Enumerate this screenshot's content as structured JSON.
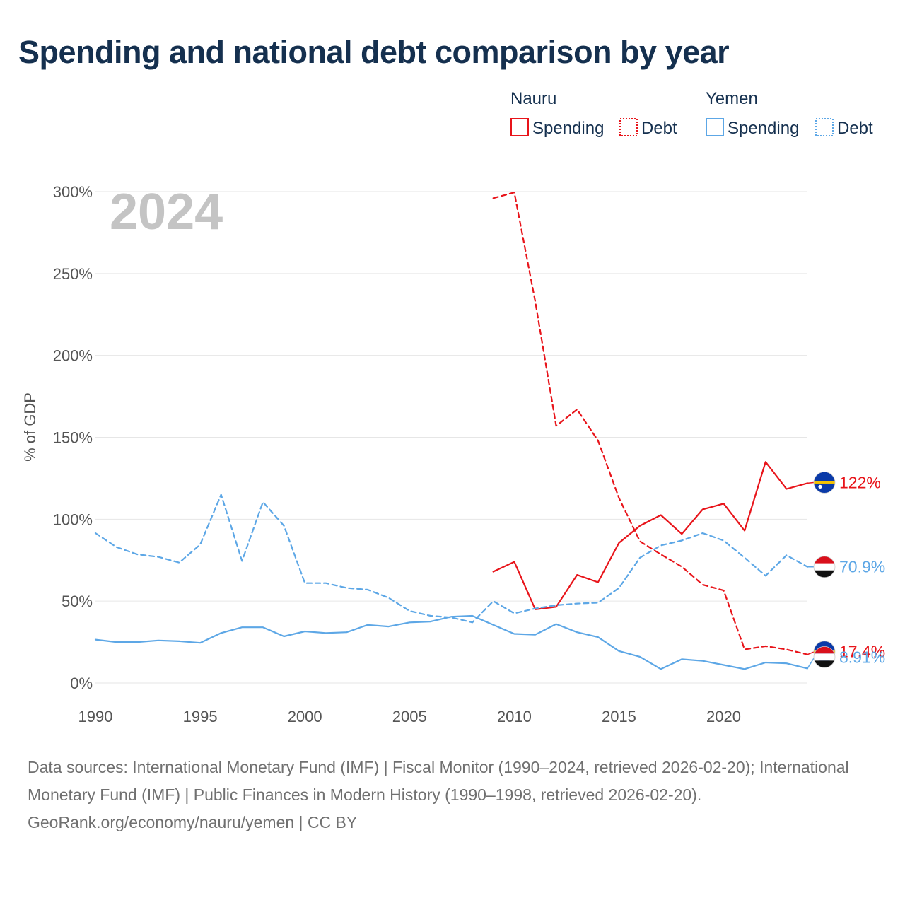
{
  "title": "Spending and national debt comparison by year",
  "year_label": "2024",
  "legend": {
    "groups": [
      {
        "name": "Nauru",
        "color": "#e8141a",
        "items": [
          {
            "label": "Spending",
            "style": "solid"
          },
          {
            "label": "Debt",
            "style": "dotted"
          }
        ]
      },
      {
        "name": "Yemen",
        "color": "#5da7e6",
        "items": [
          {
            "label": "Spending",
            "style": "solid"
          },
          {
            "label": "Debt",
            "style": "dotted"
          }
        ]
      }
    ]
  },
  "chart_data": {
    "type": "line",
    "title": "Spending and national debt comparison by year",
    "xlabel": "",
    "ylabel": "% of GDP",
    "xlim": [
      1990,
      2024
    ],
    "ylim": [
      0,
      300
    ],
    "x_ticks": [
      1990,
      1995,
      2000,
      2005,
      2010,
      2015,
      2020
    ],
    "x_tick_labels": [
      "1990",
      "1995",
      "2000",
      "2005",
      "2010",
      "2015",
      "2020"
    ],
    "y_ticks": [
      0,
      50,
      100,
      150,
      200,
      250,
      300
    ],
    "y_tick_labels": [
      "0%",
      "50%",
      "100%",
      "150%",
      "200%",
      "250%",
      "300%"
    ],
    "series": [
      {
        "name": "Nauru Spending",
        "country": "Nauru",
        "metric": "Spending",
        "color": "#e8141a",
        "dash": "solid",
        "x": [
          2009,
          2010,
          2011,
          2012,
          2013,
          2014,
          2015,
          2016,
          2017,
          2018,
          2019,
          2020,
          2021,
          2022,
          2023,
          2024
        ],
        "values": [
          68,
          74,
          45,
          46.5,
          66,
          61.5,
          85.5,
          96,
          102.5,
          91,
          106,
          109.5,
          93,
          135,
          118.5,
          122
        ],
        "end_label": "122%",
        "flag": "nauru"
      },
      {
        "name": "Nauru Debt",
        "country": "Nauru",
        "metric": "Debt",
        "color": "#e8141a",
        "dash": "dashed",
        "x": [
          2009,
          2010,
          2011,
          2012,
          2013,
          2014,
          2015,
          2016,
          2017,
          2018,
          2019,
          2020,
          2021,
          2022,
          2023,
          2024
        ],
        "values": [
          296,
          299.5,
          233,
          157,
          167,
          148,
          113,
          86.5,
          78.5,
          71,
          60,
          56.5,
          20.5,
          22.5,
          20.5,
          17.4
        ],
        "end_label": "17.4%",
        "flag": "nauru"
      },
      {
        "name": "Yemen Spending",
        "country": "Yemen",
        "metric": "Spending",
        "color": "#5da7e6",
        "dash": "solid",
        "x": [
          1990,
          1991,
          1992,
          1993,
          1994,
          1995,
          1996,
          1997,
          1998,
          1999,
          2000,
          2001,
          2002,
          2003,
          2004,
          2005,
          2006,
          2007,
          2008,
          2009,
          2010,
          2011,
          2012,
          2013,
          2014,
          2015,
          2016,
          2017,
          2018,
          2019,
          2020,
          2021,
          2022,
          2023,
          2024
        ],
        "values": [
          26.5,
          25,
          25,
          26,
          25.5,
          24.5,
          30.5,
          34,
          34,
          28.5,
          31.5,
          30.5,
          31,
          35.5,
          34.5,
          37,
          37.5,
          40.5,
          41,
          35.5,
          30,
          29.5,
          36,
          31,
          28,
          19.5,
          16,
          8.5,
          14.5,
          13.5,
          11,
          8.5,
          12.5,
          12,
          8.91
        ],
        "end_label": "8.91%",
        "flag": "yemen"
      },
      {
        "name": "Yemen Debt",
        "country": "Yemen",
        "metric": "Debt",
        "color": "#5da7e6",
        "dash": "dashed",
        "x": [
          1990,
          1991,
          1992,
          1993,
          1994,
          1995,
          1996,
          1997,
          1998,
          1999,
          2000,
          2001,
          2002,
          2003,
          2004,
          2005,
          2006,
          2007,
          2008,
          2009,
          2010,
          2011,
          2012,
          2013,
          2014,
          2015,
          2016,
          2017,
          2018,
          2019,
          2020,
          2021,
          2022,
          2023,
          2024
        ],
        "values": [
          91.5,
          83,
          78.5,
          77,
          73.5,
          84.5,
          115,
          74.5,
          110.5,
          96,
          61,
          61,
          58,
          57,
          52,
          44,
          41,
          40,
          37,
          50,
          42.5,
          45.5,
          47.5,
          48.5,
          49,
          58,
          76.5,
          84,
          87,
          91.5,
          87,
          76.5,
          65.5,
          78,
          70.9
        ],
        "end_label": "70.9%",
        "flag": "yemen"
      }
    ]
  },
  "footer": {
    "sources": "Data sources: International Monetary Fund (IMF) | Fiscal Monitor (1990–2024, retrieved 2026-02-20); International Monetary Fund (IMF) | Public Finances in Modern History (1990–1998, retrieved 2026-02-20).",
    "attribution": "GeoRank.org/economy/nauru/yemen | CC BY"
  }
}
